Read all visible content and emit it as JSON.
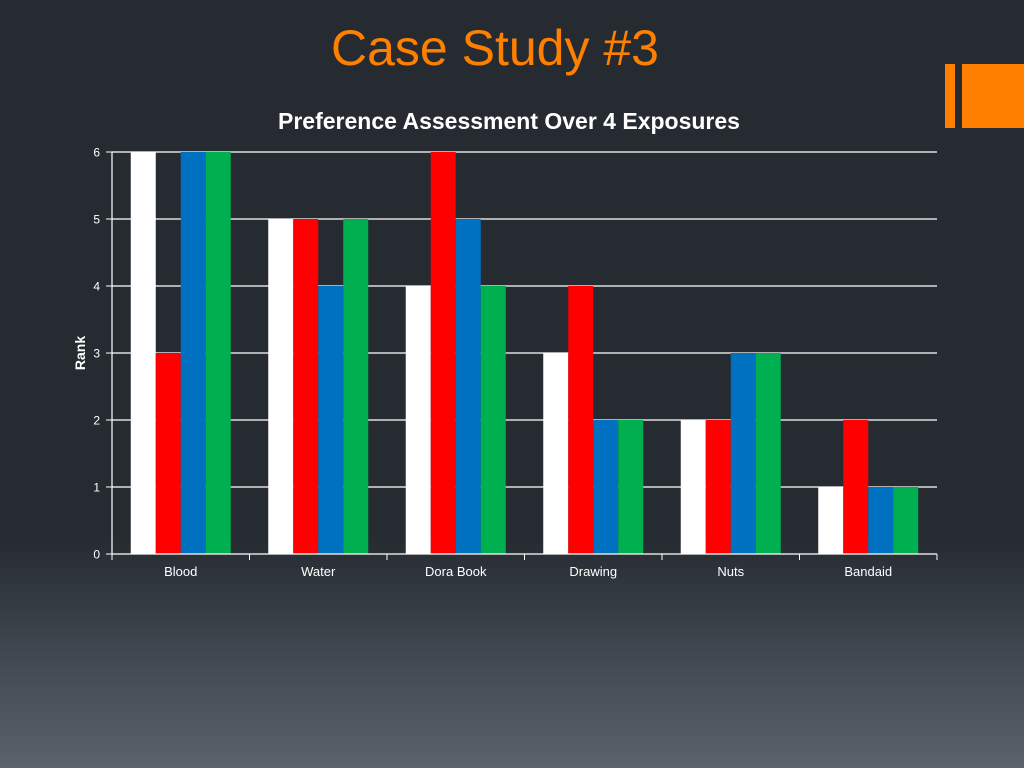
{
  "slide": {
    "title": "Case Study #3"
  },
  "colors": {
    "title": "#ff8000",
    "accent": "#ff8000",
    "background": "#262b31",
    "text": "#ffffff",
    "gridline": "#ffffff"
  },
  "chart_data": {
    "type": "bar",
    "title": "Preference Assessment Over 4 Exposures",
    "xlabel": "",
    "ylabel": "Rank",
    "ylim": [
      0,
      6
    ],
    "yticks": [
      0,
      1,
      2,
      3,
      4,
      5,
      6
    ],
    "grid": true,
    "legend": "none",
    "categories": [
      "Blood",
      "Water",
      "Dora Book",
      "Drawing",
      "Nuts",
      "Bandaid"
    ],
    "series": [
      {
        "color": "#ffffff",
        "values": [
          6,
          5,
          4,
          3,
          2,
          1
        ]
      },
      {
        "color": "#ff0000",
        "values": [
          3,
          5,
          6,
          4,
          2,
          2
        ]
      },
      {
        "color": "#0070c0",
        "values": [
          6,
          4,
          5,
          2,
          3,
          1
        ]
      },
      {
        "color": "#00b050",
        "values": [
          6,
          5,
          4,
          2,
          3,
          1
        ]
      }
    ]
  }
}
